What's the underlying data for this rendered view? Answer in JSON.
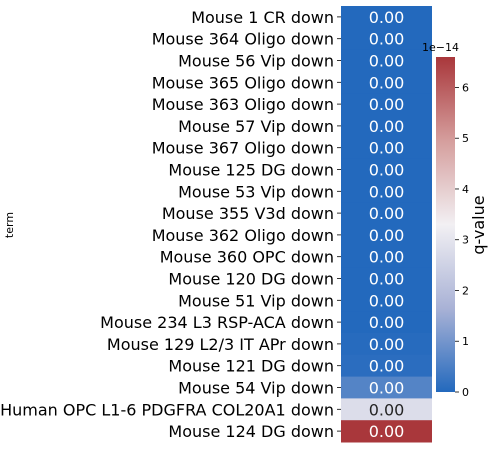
{
  "chart_data": {
    "type": "heatmap",
    "ylabel": "term",
    "rows": [
      {
        "term": "Mouse 1 CR down",
        "value": 0.0,
        "label": "0.00"
      },
      {
        "term": "Mouse 364 Oligo down",
        "value": 0.0,
        "label": "0.00"
      },
      {
        "term": "Mouse 56 Vip down",
        "value": 0.0,
        "label": "0.00"
      },
      {
        "term": "Mouse 365 Oligo down",
        "value": 0.0,
        "label": "0.00"
      },
      {
        "term": "Mouse 363 Oligo down",
        "value": 0.0,
        "label": "0.00"
      },
      {
        "term": "Mouse 57 Vip down",
        "value": 0.0,
        "label": "0.00"
      },
      {
        "term": "Mouse 367 Oligo down",
        "value": 0.0,
        "label": "0.00"
      },
      {
        "term": "Mouse 125 DG down",
        "value": 0.0,
        "label": "0.00"
      },
      {
        "term": "Mouse 53 Vip down",
        "value": 0.0,
        "label": "0.00"
      },
      {
        "term": "Mouse 355 V3d down",
        "value": 0.0,
        "label": "0.00"
      },
      {
        "term": "Mouse 362 Oligo down",
        "value": 0.0,
        "label": "0.00"
      },
      {
        "term": "Mouse 360 OPC down",
        "value": 0.0,
        "label": "0.00"
      },
      {
        "term": "Mouse 120 DG down",
        "value": 0.0,
        "label": "0.00"
      },
      {
        "term": "Mouse 51 Vip down",
        "value": 0.0,
        "label": "0.00"
      },
      {
        "term": "Mouse 234 L3 RSP-ACA down",
        "value": 0.0,
        "label": "0.00"
      },
      {
        "term": "Mouse 129 L2/3 IT APr down",
        "value": 0.05,
        "label": "0.00"
      },
      {
        "term": "Mouse 121 DG down",
        "value": 0.1,
        "label": "0.00"
      },
      {
        "term": "Mouse 54 Vip down",
        "value": 0.6,
        "label": "0.00"
      },
      {
        "term": "Human OPC L1-6 PDGFRA COL20A1 down",
        "value": 2.8,
        "label": "0.00"
      },
      {
        "term": "Mouse 124 DG down",
        "value": 6.6,
        "label": "0.00"
      }
    ],
    "colorbar": {
      "label": "q-value",
      "offset_text": "1e−14",
      "vmin": 0,
      "vmax": 6.6,
      "ticks": [
        0,
        1,
        2,
        3,
        4,
        5,
        6
      ],
      "tick_labels": [
        "0",
        "1",
        "2",
        "3",
        "4",
        "5",
        "6"
      ],
      "colormap": "vlag",
      "colors": [
        "#2369bd",
        "#a9b2d6",
        "#f2f0f3",
        "#d59e9d",
        "#a9373b"
      ]
    }
  }
}
